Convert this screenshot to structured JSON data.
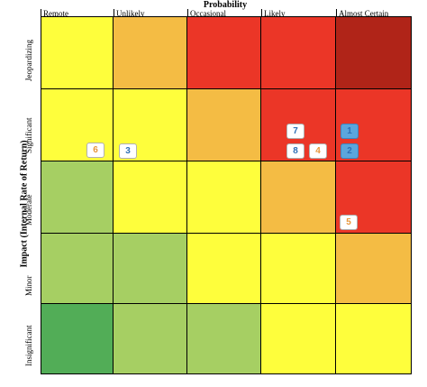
{
  "x_axis_title": "Probability",
  "y_axis_title": "Impact (Internal Rate of Return)",
  "columns": [
    "Remote",
    "Unlikely",
    "Occasional",
    "Likely",
    "Almost Certain"
  ],
  "rows": [
    "Jeopardizing",
    "Significant",
    "Moderate",
    "Minor",
    "Insignificant"
  ],
  "colors": {
    "dark_green": "#52ad57",
    "light_green": "#a6cf63",
    "yellow": "#fefe3c",
    "orange": "#f4bc44",
    "red": "#eb3627",
    "dark_red": "#b02418",
    "badge_blue_text": "#2e6fb5",
    "badge_orange_text": "#e8963a",
    "badge_blue_fill": "#5ba6dc"
  },
  "matrix": [
    [
      "yellow",
      "orange",
      "red",
      "red",
      "dark_red"
    ],
    [
      "yellow",
      "yellow",
      "orange",
      "red",
      "red"
    ],
    [
      "light_green",
      "yellow",
      "yellow",
      "orange",
      "red"
    ],
    [
      "light_green",
      "light_green",
      "yellow",
      "yellow",
      "orange"
    ],
    [
      "dark_green",
      "light_green",
      "light_green",
      "yellow",
      "yellow"
    ]
  ],
  "risks": [
    {
      "id": "1",
      "row": "Significant",
      "column": "Almost Certain",
      "style": "blue-fill"
    },
    {
      "id": "2",
      "row": "Significant",
      "column": "Almost Certain",
      "style": "blue-fill"
    },
    {
      "id": "3",
      "row": "Significant",
      "column": "Unlikely",
      "style": "white-blue"
    },
    {
      "id": "4",
      "row": "Significant",
      "column": "Likely",
      "style": "white-orange"
    },
    {
      "id": "5",
      "row": "Moderate",
      "column": "Almost Certain",
      "style": "white-orange"
    },
    {
      "id": "6",
      "row": "Significant",
      "column": "Remote",
      "style": "white-orange"
    },
    {
      "id": "7",
      "row": "Significant",
      "column": "Likely",
      "style": "white-blue"
    },
    {
      "id": "8",
      "row": "Significant",
      "column": "Likely",
      "style": "white-blue"
    }
  ]
}
